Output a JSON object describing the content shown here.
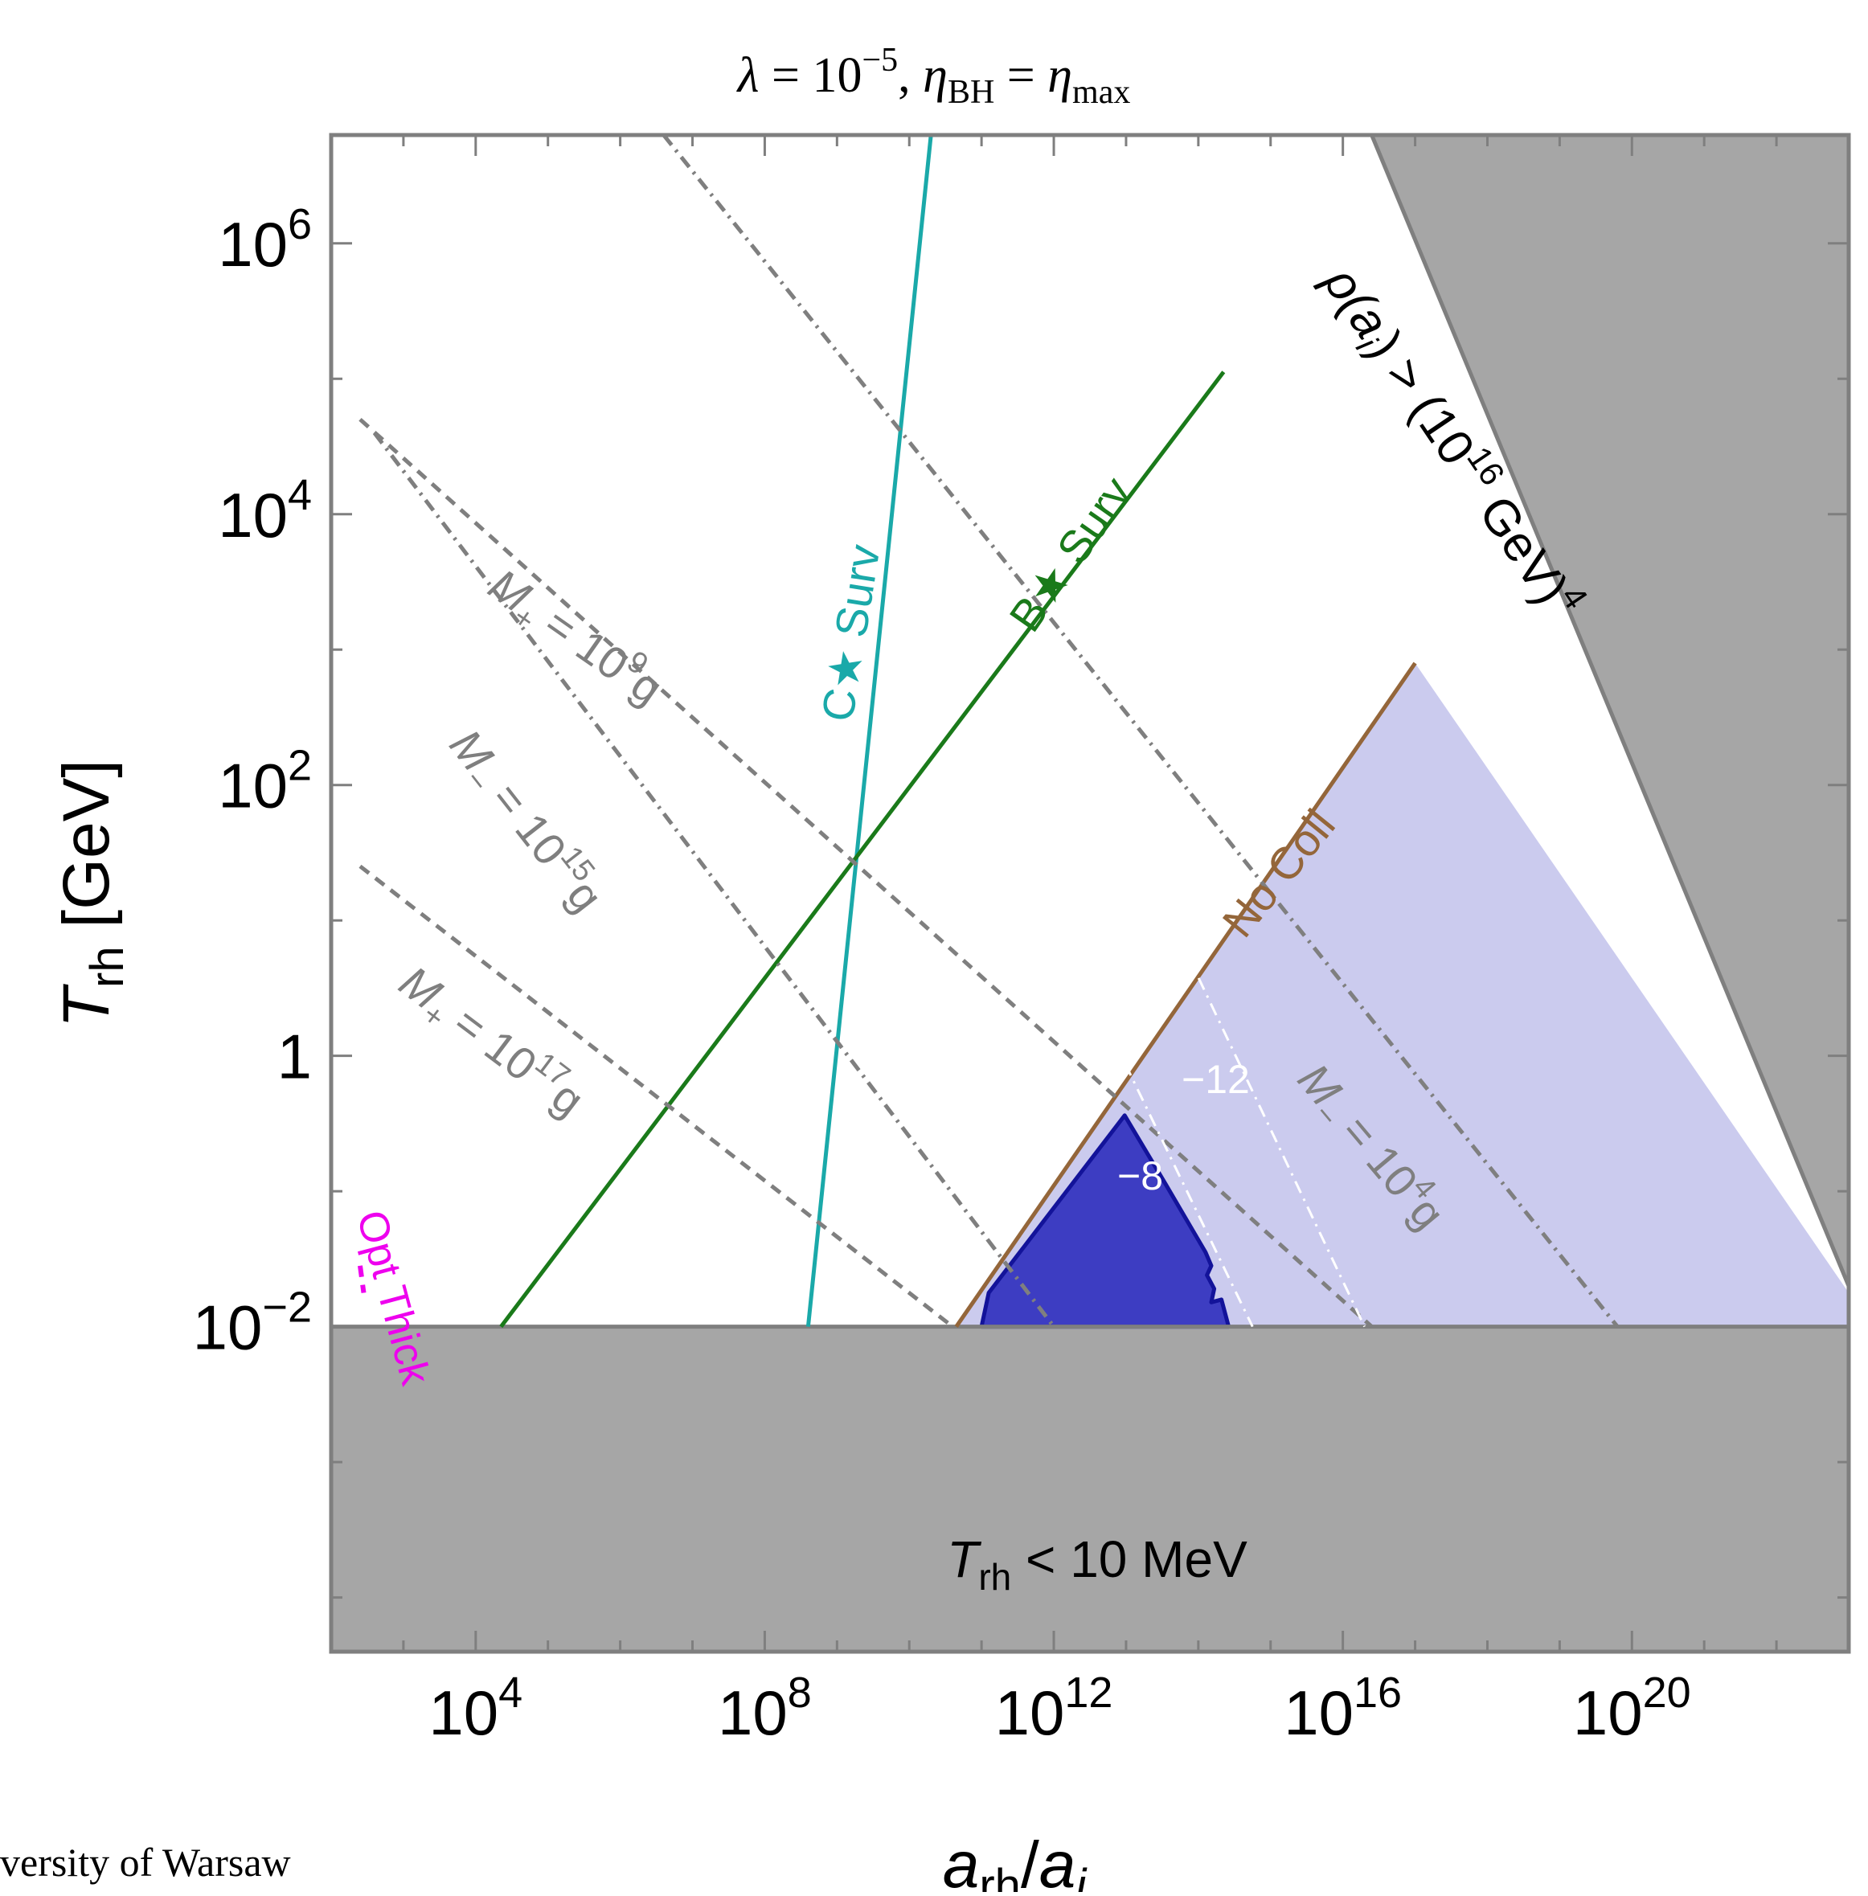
{
  "footer_text": "versity of Warsaw",
  "chart_data": {
    "type": "line",
    "title": {
      "lambda": "λ",
      "lambda_eq": " = 10",
      "lambda_exp": "−5",
      "sep": ", ",
      "eta": "η",
      "eta_sub": "BH",
      "eq": " = ",
      "eta2": "η",
      "eta2_sub": "max"
    },
    "xlabel": {
      "main": "a",
      "sub": "rh",
      "slash": "/",
      "main2": "a",
      "sub2": "i"
    },
    "ylabel": {
      "main": "T",
      "sub": "rh",
      "unit": " [GeV]"
    },
    "x_scale": "log10",
    "y_scale": "log10",
    "xlim": [
      1e-46,
      1
    ],
    "x_log_range": [
      2.0,
      23.0
    ],
    "y_log_range": [
      -4.4,
      6.8
    ],
    "x_ticks": [
      {
        "exp": 4,
        "base": "10",
        "label": "4"
      },
      {
        "exp": 8,
        "base": "10",
        "label": "8"
      },
      {
        "exp": 12,
        "base": "10",
        "label": "12"
      },
      {
        "exp": 16,
        "base": "10",
        "label": "16"
      },
      {
        "exp": 20,
        "base": "10",
        "label": "20"
      }
    ],
    "y_ticks": [
      {
        "exp": -2,
        "base": "10",
        "label": "−2"
      },
      {
        "exp": 0,
        "base": "1",
        "label": ""
      },
      {
        "exp": 2,
        "base": "10",
        "label": "2"
      },
      {
        "exp": 4,
        "base": "10",
        "label": "4"
      },
      {
        "exp": 6,
        "base": "10",
        "label": "6"
      }
    ],
    "colors": {
      "excluded_gray": "#a6a6a6",
      "frame": "#7f7f7f",
      "cyan": "#1aa9a9",
      "green": "#1a7a1a",
      "brown": "#94663a",
      "gray_line": "#7f7f7f",
      "light_blue": "#cbcbee",
      "dark_blue": "#3d3dc2",
      "dark_blue_edge": "#13139a",
      "magenta": "#ee00ee",
      "white": "#ffffff"
    },
    "regions": [
      {
        "name": "rho-excluded",
        "label": "ρ(a_i) > (10^16 GeV)^4",
        "color_key": "excluded_gray",
        "polygon": [
          [
            10.9,
            6.8
          ],
          [
            23,
            6.8
          ],
          [
            23,
            -1.7
          ],
          [
            16.4,
            6.8
          ]
        ]
      },
      {
        "name": "trh-excluded",
        "label": "T_rh < 10 MeV",
        "color_key": "excluded_gray",
        "polygon": [
          [
            2,
            -2
          ],
          [
            23,
            -2
          ],
          [
            23,
            -4.4
          ],
          [
            2,
            -4.4
          ]
        ]
      },
      {
        "name": "light-blue-region",
        "color_key": "light_blue",
        "polygon": [
          [
            10.65,
            -2
          ],
          [
            17.0,
            2.9
          ],
          [
            23,
            -1.75
          ],
          [
            23,
            -2
          ]
        ]
      },
      {
        "name": "dark-blue-region",
        "color_key": "dark_blue",
        "polygon": [
          [
            11.0,
            -2
          ],
          [
            11.1,
            -1.75
          ],
          [
            12.98,
            -0.44
          ],
          [
            13.55,
            -0.95
          ],
          [
            14.1,
            -1.45
          ],
          [
            14.18,
            -1.55
          ],
          [
            14.12,
            -1.62
          ],
          [
            14.22,
            -1.72
          ],
          [
            14.18,
            -1.82
          ],
          [
            14.32,
            -1.8
          ],
          [
            14.42,
            -2.0
          ]
        ]
      }
    ],
    "series": [
      {
        "name": "C★ Surv",
        "color_key": "cyan",
        "style": "solid",
        "x": [
          8.6,
          10.3
        ],
        "y": [
          -2,
          6.8
        ]
      },
      {
        "name": "B★ Surv",
        "color_key": "green",
        "style": "solid",
        "x": [
          4.35,
          14.35
        ],
        "y": [
          -2,
          5.05
        ]
      },
      {
        "name": "No Coll",
        "color_key": "brown",
        "style": "solid",
        "x": [
          10.65,
          17.0
        ],
        "y": [
          -2,
          2.9
        ]
      },
      {
        "name": "M₊ = 10⁹ g",
        "color_key": "gray_line",
        "style": "dashed",
        "x": [
          2.4,
          16.4
        ],
        "y": [
          4.7,
          -2
        ]
      },
      {
        "name": "M₊ = 10¹⁷ g",
        "color_key": "gray_line",
        "style": "dashed",
        "x": [
          2.4,
          10.6
        ],
        "y": [
          1.4,
          -2
        ]
      },
      {
        "name": "M₋ = 10¹⁵ g",
        "color_key": "gray_line",
        "style": "dashdot",
        "x": [
          2.6,
          12.0
        ],
        "y": [
          4.6,
          -2
        ]
      },
      {
        "name": "M₋ = 10⁴ g",
        "color_key": "gray_line",
        "style": "dashdot",
        "x": [
          6.6,
          19.8
        ],
        "y": [
          6.8,
          -2
        ]
      },
      {
        "name": "−12",
        "color_key": "white",
        "style": "dashdot",
        "x": [
          13.0,
          16.3
        ],
        "y": [
          1.7,
          -2
        ]
      },
      {
        "name": "−8",
        "color_key": "white",
        "style": "dashdot",
        "x": [
          11.8,
          14.75
        ],
        "y": [
          1.25,
          -2
        ]
      },
      {
        "name": "Opt Thick",
        "color_key": "magenta",
        "style": "dashed",
        "x": [
          2.4,
          2.45
        ],
        "y": [
          -1.55,
          -1.75
        ]
      }
    ],
    "annotations": {
      "rho": {
        "rho": "ρ(",
        "a": "a",
        "i": "i",
        "gt": ") > (10",
        "exp16": "16",
        "gev": " GeV)",
        "exp4": "4"
      },
      "trh": {
        "T": "T",
        "sub": "rh",
        "rest": " < 10 MeV"
      },
      "c_surv": "C★ Surv",
      "b_surv": "B★ Surv",
      "no_coll": "No Coll",
      "opt_thick": "Opt Thick",
      "m_plus_9": {
        "m": "M",
        "sub": "+",
        "eq": " = 10",
        "exp": "9",
        "unit": "g"
      },
      "m_minus_15": {
        "m": "M",
        "sub": "−",
        "eq": " = 10",
        "exp": "15",
        "unit": "g"
      },
      "m_plus_17": {
        "m": "M",
        "sub": "+",
        "eq": " = 10",
        "exp": "17",
        "unit": "g"
      },
      "m_minus_4": {
        "m": "M",
        "sub": "−",
        "eq": " = 10",
        "exp": "4",
        "unit": "g"
      },
      "contour_12": "−12",
      "contour_8": "−8"
    }
  }
}
